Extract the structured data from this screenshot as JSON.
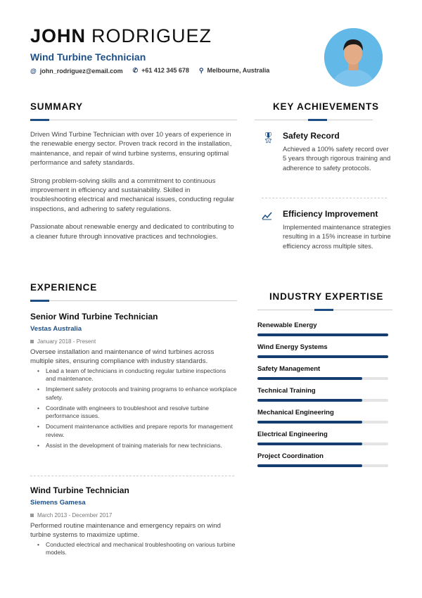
{
  "header": {
    "first_name": "JOHN",
    "last_name": "RODRIGUEZ",
    "title": "Wind Turbine Technician",
    "email": "john_rodriguez@email.com",
    "phone": "+61 412 345 678",
    "location": "Melbourne, Australia"
  },
  "summary": {
    "heading": "SUMMARY",
    "paragraphs": [
      "Driven Wind Turbine Technician with over 10 years of experience in the renewable energy sector. Proven track record in the installation, maintenance, and repair of wind turbine systems, ensuring optimal performance and safety standards.",
      "Strong problem-solving skills and a commitment to continuous improvement in efficiency and sustainability. Skilled in troubleshooting electrical and mechanical issues, conducting regular inspections, and adhering to safety regulations.",
      "Passionate about renewable energy and dedicated to contributing to a cleaner future through innovative practices and technologies."
    ]
  },
  "achievements": {
    "heading": "KEY ACHIEVEMENTS",
    "items": [
      {
        "icon": "award-icon",
        "title": "Safety Record",
        "desc": "Achieved a 100% safety record over 5 years through rigorous training and adherence to safety protocols."
      },
      {
        "icon": "trend-up-icon",
        "title": "Efficiency Improvement",
        "desc": "Implemented maintenance strategies resulting in a 15% increase in turbine efficiency across multiple sites."
      }
    ]
  },
  "experience": {
    "heading": "EXPERIENCE",
    "jobs": [
      {
        "title": "Senior Wind Turbine Technician",
        "company": "Vestas Australia",
        "dates": "January 2018 - Present",
        "summary": "Oversee installation and maintenance of wind turbines across multiple sites, ensuring compliance with industry standards.",
        "bullets": [
          "Lead a team of technicians in conducting regular turbine inspections and maintenance.",
          "Implement safety protocols and training programs to enhance workplace safety.",
          "Coordinate with engineers to troubleshoot and resolve turbine performance issues.",
          "Document maintenance activities and prepare reports for management review.",
          "Assist in the development of training materials for new technicians."
        ]
      },
      {
        "title": "Wind Turbine Technician",
        "company": "Siemens Gamesa",
        "dates": "March 2013 - December 2017",
        "summary": "Performed routine maintenance and emergency repairs on wind turbine systems to maximize uptime.",
        "bullets": [
          "Conducted electrical and mechanical troubleshooting on various turbine models."
        ]
      }
    ]
  },
  "expertise": {
    "heading": "INDUSTRY EXPERTISE",
    "skills": [
      {
        "name": "Renewable Energy",
        "level": 100
      },
      {
        "name": "Wind Energy Systems",
        "level": 100
      },
      {
        "name": "Safety Management",
        "level": 80
      },
      {
        "name": "Technical Training",
        "level": 80
      },
      {
        "name": "Mechanical Engineering",
        "level": 80
      },
      {
        "name": "Electrical Engineering",
        "level": 80
      },
      {
        "name": "Project Coordination",
        "level": 80
      }
    ]
  },
  "colors": {
    "accent": "#1d4f86",
    "bar": "#153d6f"
  }
}
